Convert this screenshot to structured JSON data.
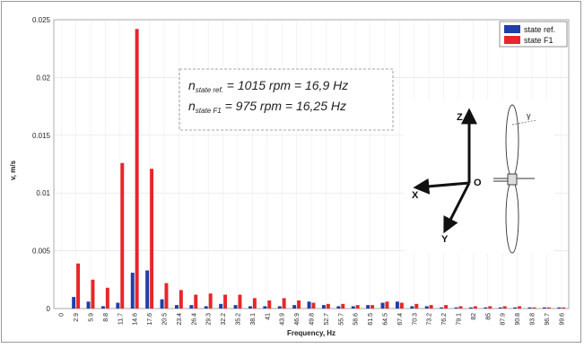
{
  "chart_data": {
    "type": "bar",
    "xlabel": "Frequency, Hz",
    "ylabel": "v, m/s",
    "ylim": [
      0,
      0.025
    ],
    "yticks": [
      "0",
      "0.005",
      "0.01",
      "0.015",
      "0.02",
      "0.025"
    ],
    "grid": true,
    "legend_position": "top-right",
    "categories": [
      "0",
      "2.9",
      "5.9",
      "8.8",
      "11.7",
      "14.6",
      "17.6",
      "20.5",
      "23.4",
      "26.4",
      "29.3",
      "32.2",
      "35.2",
      "38.1",
      "41",
      "43.9",
      "46.9",
      "49.8",
      "52.7",
      "55.7",
      "58.6",
      "61.5",
      "64.5",
      "67.4",
      "70.3",
      "73.2",
      "76.2",
      "79.1",
      "82",
      "85",
      "87.9",
      "90.8",
      "93.8",
      "96.7",
      "99.6"
    ],
    "series": [
      {
        "name": "state ref.",
        "color": "#1f3fa8",
        "values": [
          0,
          0.001,
          0.0006,
          0.0002,
          0.0005,
          0.0031,
          0.0033,
          0.0008,
          0.0003,
          0.0003,
          0.0002,
          0.0004,
          0.0003,
          0.0002,
          0.0002,
          0.0002,
          0.0003,
          0.0006,
          0.0003,
          0.0002,
          0.0002,
          0.0003,
          0.0005,
          0.0006,
          0.0002,
          0.0002,
          0.0001,
          0.0001,
          0.0001,
          0.0001,
          0.0001,
          0.0001,
          0.0001,
          0.0001,
          0.0001
        ]
      },
      {
        "name": "state F1",
        "color": "#e8262a",
        "values": [
          0,
          0.0039,
          0.0025,
          0.0018,
          0.0126,
          0.0242,
          0.0121,
          0.0022,
          0.0016,
          0.0012,
          0.0013,
          0.0012,
          0.0012,
          0.0009,
          0.0007,
          0.0009,
          0.0007,
          0.0005,
          0.0004,
          0.0004,
          0.0003,
          0.0003,
          0.0006,
          0.0005,
          0.0004,
          0.0003,
          0.0003,
          0.0002,
          0.0002,
          0.0002,
          0.0002,
          0.0002,
          0.0001,
          0.0001,
          0.0001
        ]
      }
    ],
    "annotation": {
      "line1": {
        "n": "n",
        "sub": "state ref.",
        "text": " = 1015 rpm = 16,9 Hz"
      },
      "line2": {
        "n": "n",
        "sub": "state F1",
        "text": " = 975 rpm = 16,25 Hz"
      }
    },
    "inset": {
      "axis_x": "X",
      "axis_y": "Y",
      "axis_z": "Z",
      "origin": "O",
      "angle": "γ"
    }
  }
}
